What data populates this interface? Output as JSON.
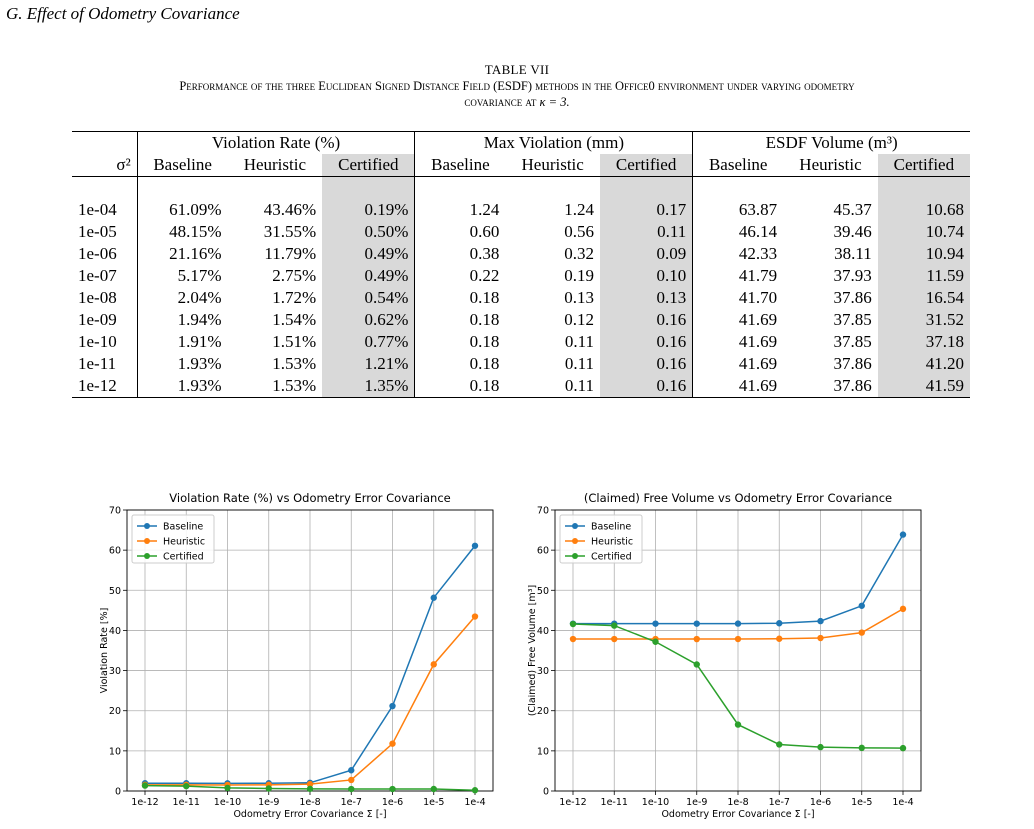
{
  "section_title": "G. Effect of Odometry Covariance",
  "table": {
    "label": "TABLE VII",
    "caption": "Performance of the three Euclidean Signed Distance Field (ESDF) methods in the Office0 environment under varying odometry",
    "caption2": "covariance at",
    "caption_kappa": "κ = 3.",
    "row_header": "σ²",
    "groups": [
      {
        "label": "Violation Rate (%)"
      },
      {
        "label": "Max Violation (mm)"
      },
      {
        "label": "ESDF Volume (m³)"
      }
    ],
    "sub_headers": [
      "Baseline",
      "Heuristic",
      "Certified",
      "Baseline",
      "Heuristic",
      "Certified",
      "Baseline",
      "Heuristic",
      "Certified"
    ],
    "rows": [
      {
        "sigma": "1e-04",
        "cells": [
          "61.09%",
          "43.46%",
          "0.19%",
          "1.24",
          "1.24",
          "0.17",
          "63.87",
          "45.37",
          "10.68"
        ]
      },
      {
        "sigma": "1e-05",
        "cells": [
          "48.15%",
          "31.55%",
          "0.50%",
          "0.60",
          "0.56",
          "0.11",
          "46.14",
          "39.46",
          "10.74"
        ]
      },
      {
        "sigma": "1e-06",
        "cells": [
          "21.16%",
          "11.79%",
          "0.49%",
          "0.38",
          "0.32",
          "0.09",
          "42.33",
          "38.11",
          "10.94"
        ]
      },
      {
        "sigma": "1e-07",
        "cells": [
          "5.17%",
          "2.75%",
          "0.49%",
          "0.22",
          "0.19",
          "0.10",
          "41.79",
          "37.93",
          "11.59"
        ]
      },
      {
        "sigma": "1e-08",
        "cells": [
          "2.04%",
          "1.72%",
          "0.54%",
          "0.18",
          "0.13",
          "0.13",
          "41.70",
          "37.86",
          "16.54"
        ]
      },
      {
        "sigma": "1e-09",
        "cells": [
          "1.94%",
          "1.54%",
          "0.62%",
          "0.18",
          "0.12",
          "0.16",
          "41.69",
          "37.85",
          "31.52"
        ]
      },
      {
        "sigma": "1e-10",
        "cells": [
          "1.91%",
          "1.51%",
          "0.77%",
          "0.18",
          "0.11",
          "0.16",
          "41.69",
          "37.85",
          "37.18"
        ]
      },
      {
        "sigma": "1e-11",
        "cells": [
          "1.93%",
          "1.53%",
          "1.21%",
          "0.18",
          "0.11",
          "0.16",
          "41.69",
          "37.86",
          "41.20"
        ]
      },
      {
        "sigma": "1e-12",
        "cells": [
          "1.93%",
          "1.53%",
          "1.35%",
          "0.18",
          "0.11",
          "0.16",
          "41.69",
          "37.86",
          "41.59"
        ]
      }
    ]
  },
  "chart_data": [
    {
      "type": "line",
      "title": "Violation Rate (%) vs Odometry Error Covariance",
      "xlabel": "Odometry Error Covariance Σ [-]",
      "ylabel": "Violation Rate [%]",
      "categories": [
        "1e-12",
        "1e-11",
        "1e-10",
        "1e-9",
        "1e-8",
        "1e-7",
        "1e-6",
        "1e-5",
        "1e-4"
      ],
      "ylim": [
        0,
        70
      ],
      "yticks": [
        "0",
        "10",
        "20",
        "30",
        "40",
        "50",
        "60",
        "70"
      ],
      "grid": true,
      "legend": "top-left",
      "series": [
        {
          "name": "Baseline",
          "color": "#1f77b4",
          "values": [
            1.93,
            1.93,
            1.91,
            1.94,
            2.04,
            5.17,
            21.16,
            48.15,
            61.09
          ]
        },
        {
          "name": "Heuristic",
          "color": "#ff7f0e",
          "values": [
            1.53,
            1.53,
            1.51,
            1.54,
            1.72,
            2.75,
            11.79,
            31.55,
            43.46
          ]
        },
        {
          "name": "Certified",
          "color": "#2ca02c",
          "values": [
            1.35,
            1.21,
            0.77,
            0.62,
            0.54,
            0.49,
            0.49,
            0.5,
            0.19
          ]
        }
      ]
    },
    {
      "type": "line",
      "title": "(Claimed) Free Volume vs Odometry Error Covariance",
      "xlabel": "Odometry Error Covariance Σ [-]",
      "ylabel": "(Claimed) Free Volume [m³]",
      "categories": [
        "1e-12",
        "1e-11",
        "1e-10",
        "1e-9",
        "1e-8",
        "1e-7",
        "1e-6",
        "1e-5",
        "1e-4"
      ],
      "ylim": [
        0,
        70
      ],
      "yticks": [
        "0",
        "10",
        "20",
        "30",
        "40",
        "50",
        "60",
        "70"
      ],
      "grid": true,
      "legend": "top-left",
      "series": [
        {
          "name": "Baseline",
          "color": "#1f77b4",
          "values": [
            41.69,
            41.69,
            41.69,
            41.69,
            41.7,
            41.79,
            42.33,
            46.14,
            63.87
          ]
        },
        {
          "name": "Heuristic",
          "color": "#ff7f0e",
          "values": [
            37.86,
            37.86,
            37.85,
            37.85,
            37.86,
            37.93,
            38.11,
            39.46,
            45.37
          ]
        },
        {
          "name": "Certified",
          "color": "#2ca02c",
          "values": [
            41.59,
            41.2,
            37.18,
            31.52,
            16.54,
            11.59,
            10.94,
            10.74,
            10.68
          ]
        }
      ]
    }
  ]
}
